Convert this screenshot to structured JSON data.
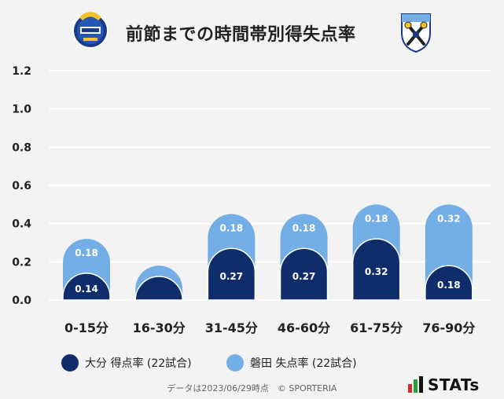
{
  "header": {
    "title": "前節までの時間帯別得失点率"
  },
  "emblems": {
    "left_icon": "oita-trinita-emblem-icon",
    "right_icon": "jubilo-iwata-emblem-icon"
  },
  "chart_data": {
    "type": "bar",
    "stacked": true,
    "categories": [
      "0-15分",
      "16-30分",
      "31-45分",
      "46-60分",
      "61-75分",
      "76-90分"
    ],
    "series": [
      {
        "name": "大分 得点率 (22試合)",
        "color": "#0f2d6b",
        "values": [
          0.14,
          0.09,
          0.27,
          0.27,
          0.32,
          0.18
        ],
        "labels": [
          "0.14",
          "",
          "0.27",
          "0.27",
          "0.32",
          "0.18"
        ]
      },
      {
        "name": "磐田 失点率 (22試合)",
        "color": "#74aee6",
        "values": [
          0.18,
          0.09,
          0.18,
          0.18,
          0.18,
          0.32
        ],
        "labels": [
          "0.18",
          "",
          "0.18",
          "0.18",
          "0.18",
          "0.32"
        ]
      }
    ],
    "yticks": [
      "0.0",
      "0.2",
      "0.4",
      "0.6",
      "0.8",
      "1.0",
      "1.2"
    ],
    "ylim": [
      0,
      1.2
    ],
    "grid": true,
    "legend": "bottom"
  },
  "footer": {
    "note": "データは2023/06/29時点　© SPORTERIA",
    "brand": "STATs"
  }
}
